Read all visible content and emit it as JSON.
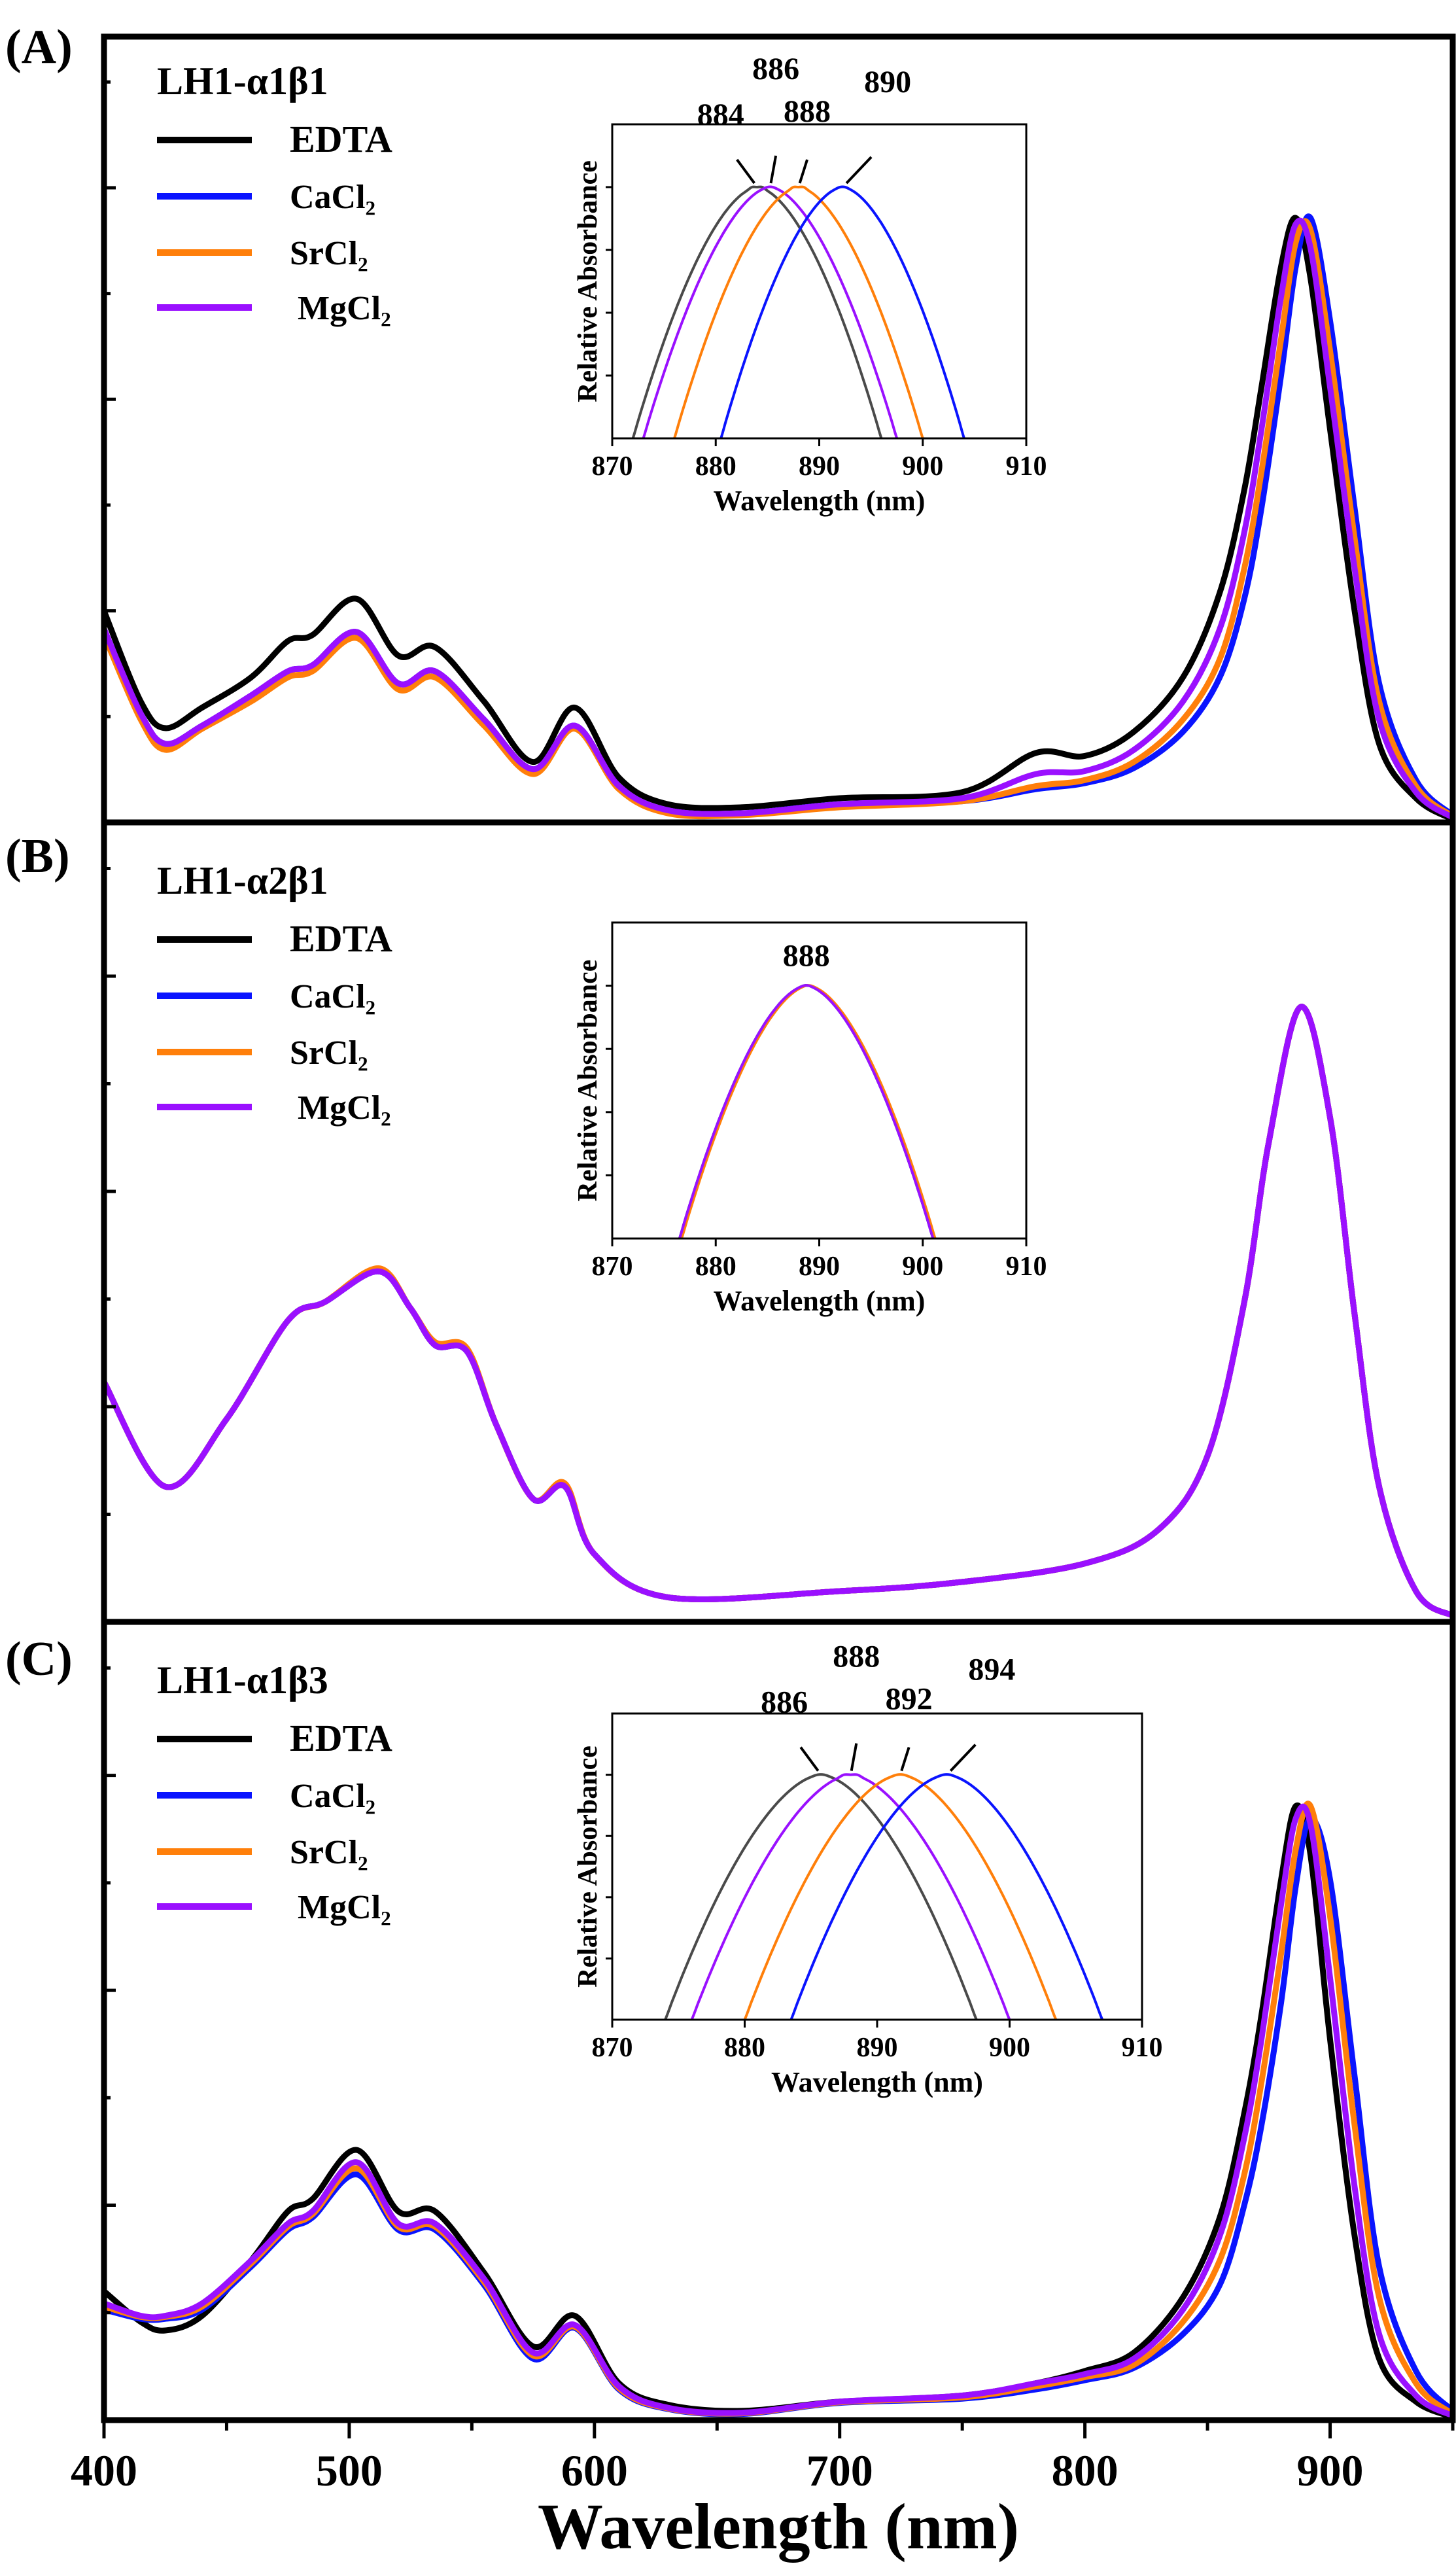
{
  "figure": {
    "xlabel": "Wavelength (nm)",
    "xticks": [
      400,
      500,
      600,
      700,
      800,
      900
    ],
    "xlim": [
      400,
      950
    ]
  },
  "colors": {
    "EDTA": "#000000",
    "CaCl2": "#0a14ff",
    "SrCl2": "#ff7f0a",
    "MgCl2": "#9a10ff",
    "EDTA_inset": "#4a4a4a"
  },
  "chart_data": [
    {
      "type": "line",
      "panel_label": "(A)",
      "title": "LH1-α1β1",
      "xlabel": "Wavelength (nm)",
      "ylabel": "",
      "xlim": [
        400,
        950
      ],
      "ylim": [
        0,
        1.3
      ],
      "legend_position": "top-left",
      "x": [
        400,
        415,
        425,
        440,
        460,
        475,
        485,
        503,
        520,
        535,
        555,
        575,
        592,
        610,
        630,
        660,
        700,
        750,
        780,
        800,
        820,
        840,
        855,
        865,
        872,
        880,
        886,
        892,
        900,
        910,
        920,
        935,
        950
      ],
      "series": [
        {
          "name": "EDTA",
          "key": "EDTA",
          "values": [
            0.35,
            0.2,
            0.156,
            0.19,
            0.24,
            0.3,
            0.31,
            0.37,
            0.276,
            0.29,
            0.2,
            0.1,
            0.19,
            0.074,
            0.03,
            0.025,
            0.04,
            0.05,
            0.115,
            0.11,
            0.15,
            0.24,
            0.38,
            0.55,
            0.72,
            0.92,
            1.0,
            0.9,
            0.65,
            0.35,
            0.13,
            0.04,
            0.005
          ]
        },
        {
          "name": "CaCl₂",
          "key": "CaCl2",
          "values": [
            0.32,
            0.18,
            0.13,
            0.16,
            0.21,
            0.25,
            0.26,
            0.315,
            0.23,
            0.25,
            0.17,
            0.088,
            0.16,
            0.06,
            0.02,
            0.015,
            0.03,
            0.035,
            0.055,
            0.065,
            0.09,
            0.15,
            0.24,
            0.37,
            0.52,
            0.74,
            0.92,
            1.0,
            0.83,
            0.52,
            0.23,
            0.07,
            0.012
          ]
        },
        {
          "name": "SrCl₂",
          "key": "SrCl2",
          "values": [
            0.31,
            0.17,
            0.12,
            0.155,
            0.2,
            0.24,
            0.25,
            0.305,
            0.22,
            0.24,
            0.16,
            0.08,
            0.155,
            0.055,
            0.015,
            0.012,
            0.025,
            0.035,
            0.06,
            0.07,
            0.1,
            0.17,
            0.27,
            0.42,
            0.58,
            0.8,
            0.96,
            0.98,
            0.78,
            0.47,
            0.2,
            0.06,
            0.01
          ]
        },
        {
          "name": "MgCl₂",
          "key": "MgCl2",
          "values": [
            0.32,
            0.18,
            0.13,
            0.16,
            0.21,
            0.25,
            0.26,
            0.315,
            0.23,
            0.25,
            0.17,
            0.088,
            0.16,
            0.06,
            0.02,
            0.015,
            0.03,
            0.04,
            0.08,
            0.085,
            0.12,
            0.2,
            0.32,
            0.48,
            0.65,
            0.87,
            0.99,
            0.95,
            0.72,
            0.42,
            0.17,
            0.05,
            0.008
          ]
        }
      ],
      "inset": {
        "xlabel": "Wavelength (nm)",
        "ylabel": "Relative Absorbance",
        "xlim": [
          870,
          910
        ],
        "ylim": [
          0,
          1.25
        ],
        "xticks": [
          870,
          880,
          890,
          900,
          910
        ],
        "series": [
          {
            "key": "EDTA",
            "range": [
              872,
              896
            ],
            "peak_label": "884"
          },
          {
            "key": "MgCl2",
            "range": [
              873,
              897.5
            ],
            "peak_label": "886"
          },
          {
            "key": "SrCl2",
            "range": [
              876,
              900
            ],
            "peak_label": "888"
          },
          {
            "key": "CaCl2",
            "range": [
              880.5,
              904
            ],
            "peak_label": "890"
          }
        ]
      }
    },
    {
      "type": "line",
      "panel_label": "(B)",
      "title": "LH1-α2β1",
      "xlabel": "Wavelength (nm)",
      "ylabel": "",
      "xlim": [
        400,
        950
      ],
      "ylim": [
        0,
        1.3
      ],
      "legend_position": "top-left",
      "x": [
        400,
        425,
        450,
        475,
        490,
        512,
        525,
        535,
        548,
        560,
        575,
        588,
        600,
        630,
        700,
        750,
        800,
        830,
        850,
        865,
        875,
        888,
        900,
        910,
        920,
        935,
        950
      ],
      "series": [
        {
          "name": "EDTA",
          "key": "EDTA",
          "values": [
            0.39,
            0.22,
            0.33,
            0.49,
            0.52,
            0.57,
            0.51,
            0.45,
            0.44,
            0.32,
            0.2,
            0.22,
            0.11,
            0.04,
            0.05,
            0.065,
            0.095,
            0.15,
            0.27,
            0.52,
            0.78,
            1.0,
            0.82,
            0.5,
            0.22,
            0.05,
            0.01
          ]
        },
        {
          "name": "CaCl₂",
          "key": "CaCl2",
          "values": [
            0.39,
            0.22,
            0.33,
            0.49,
            0.52,
            0.57,
            0.51,
            0.45,
            0.44,
            0.32,
            0.2,
            0.22,
            0.11,
            0.04,
            0.05,
            0.065,
            0.095,
            0.15,
            0.27,
            0.52,
            0.78,
            1.0,
            0.82,
            0.5,
            0.22,
            0.05,
            0.01
          ]
        },
        {
          "name": "SrCl₂",
          "key": "SrCl2",
          "values": [
            0.39,
            0.22,
            0.33,
            0.49,
            0.52,
            0.575,
            0.51,
            0.455,
            0.445,
            0.32,
            0.2,
            0.225,
            0.11,
            0.04,
            0.05,
            0.065,
            0.095,
            0.15,
            0.27,
            0.52,
            0.78,
            1.0,
            0.82,
            0.5,
            0.22,
            0.05,
            0.01
          ]
        },
        {
          "name": "MgCl₂",
          "key": "MgCl2",
          "values": [
            0.39,
            0.22,
            0.33,
            0.49,
            0.52,
            0.57,
            0.51,
            0.45,
            0.44,
            0.32,
            0.2,
            0.22,
            0.11,
            0.04,
            0.05,
            0.065,
            0.095,
            0.15,
            0.27,
            0.52,
            0.78,
            1.0,
            0.82,
            0.5,
            0.22,
            0.05,
            0.01
          ]
        }
      ],
      "inset": {
        "xlabel": "Wavelength (nm)",
        "ylabel": "Relative Absorbance",
        "xlim": [
          870,
          910
        ],
        "ylim": [
          0,
          1.25
        ],
        "xticks": [
          870,
          880,
          890,
          900,
          910
        ],
        "series": [
          {
            "key": "EDTA",
            "range": [
              876.5,
              901
            ],
            "peak_label": ""
          },
          {
            "key": "CaCl2",
            "range": [
              876.5,
              901
            ],
            "peak_label": ""
          },
          {
            "key": "SrCl2",
            "range": [
              876.7,
              901.2
            ],
            "peak_label": ""
          },
          {
            "key": "MgCl2",
            "range": [
              876.5,
              901
            ],
            "peak_label": "888"
          }
        ]
      }
    },
    {
      "type": "line",
      "panel_label": "(C)",
      "title": "LH1-α1β3",
      "xlabel": "Wavelength (nm)",
      "ylabel": "",
      "xlim": [
        400,
        950
      ],
      "ylim": [
        0,
        1.3
      ],
      "legend_position": "top-left",
      "x": [
        400,
        415,
        425,
        440,
        460,
        475,
        485,
        503,
        520,
        535,
        555,
        575,
        592,
        610,
        630,
        660,
        700,
        750,
        780,
        800,
        820,
        840,
        855,
        865,
        872,
        880,
        886,
        892,
        900,
        910,
        920,
        935,
        950
      ],
      "series": [
        {
          "name": "EDTA",
          "key": "EDTA",
          "values": [
            0.21,
            0.16,
            0.146,
            0.17,
            0.26,
            0.34,
            0.36,
            0.44,
            0.34,
            0.34,
            0.24,
            0.12,
            0.17,
            0.06,
            0.025,
            0.015,
            0.03,
            0.04,
            0.06,
            0.08,
            0.11,
            0.2,
            0.33,
            0.5,
            0.66,
            0.88,
            1.0,
            0.92,
            0.62,
            0.3,
            0.1,
            0.03,
            0.005
          ]
        },
        {
          "name": "CaCl₂",
          "key": "CaCl2",
          "values": [
            0.18,
            0.165,
            0.165,
            0.18,
            0.25,
            0.31,
            0.33,
            0.4,
            0.31,
            0.31,
            0.22,
            0.1,
            0.15,
            0.05,
            0.018,
            0.01,
            0.028,
            0.035,
            0.05,
            0.065,
            0.085,
            0.14,
            0.22,
            0.35,
            0.48,
            0.68,
            0.87,
            0.98,
            0.88,
            0.56,
            0.25,
            0.08,
            0.015
          ]
        },
        {
          "name": "SrCl₂",
          "key": "SrCl2",
          "values": [
            0.185,
            0.168,
            0.168,
            0.185,
            0.255,
            0.315,
            0.335,
            0.41,
            0.315,
            0.315,
            0.225,
            0.105,
            0.152,
            0.052,
            0.019,
            0.011,
            0.029,
            0.037,
            0.055,
            0.07,
            0.09,
            0.16,
            0.26,
            0.4,
            0.55,
            0.76,
            0.93,
            1.0,
            0.82,
            0.48,
            0.2,
            0.06,
            0.01
          ]
        },
        {
          "name": "MgCl₂",
          "key": "MgCl2",
          "values": [
            0.19,
            0.17,
            0.17,
            0.19,
            0.26,
            0.32,
            0.34,
            0.42,
            0.32,
            0.32,
            0.23,
            0.11,
            0.155,
            0.055,
            0.02,
            0.012,
            0.03,
            0.04,
            0.06,
            0.075,
            0.1,
            0.18,
            0.3,
            0.46,
            0.62,
            0.84,
            0.98,
            0.97,
            0.72,
            0.38,
            0.14,
            0.04,
            0.007
          ]
        }
      ],
      "inset": {
        "xlabel": "Wavelength (nm)",
        "ylabel": "Relative Absorbance",
        "xlim": [
          870,
          910
        ],
        "ylim": [
          0,
          1.25
        ],
        "xticks": [
          870,
          880,
          890,
          900,
          910
        ],
        "series": [
          {
            "key": "EDTA",
            "range": [
              874,
              897.5
            ],
            "peak_label": "886"
          },
          {
            "key": "MgCl2",
            "range": [
              876,
              900
            ],
            "peak_label": "888"
          },
          {
            "key": "SrCl2",
            "range": [
              880,
              903.5
            ],
            "peak_label": "892"
          },
          {
            "key": "CaCl2",
            "range": [
              883.5,
              907
            ],
            "peak_label": "894"
          }
        ]
      }
    }
  ]
}
